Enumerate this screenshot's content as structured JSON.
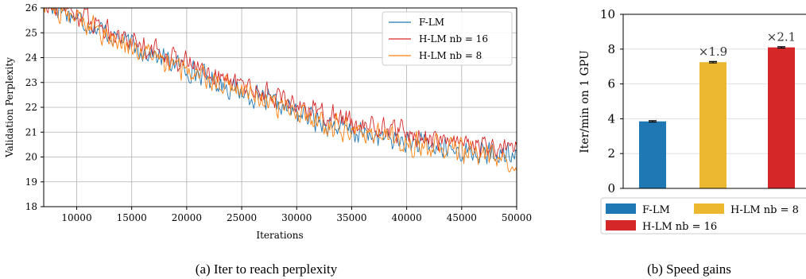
{
  "chart_data": [
    {
      "type": "line",
      "caption": "(a) Iter to reach perplexity",
      "xlabel": "Iterations",
      "ylabel": "Validation Perplexity",
      "xlim": [
        7000,
        50000
      ],
      "ylim": [
        18,
        26
      ],
      "xticks": [
        "10000",
        "15000",
        "20000",
        "25000",
        "30000",
        "35000",
        "40000",
        "45000",
        "50000"
      ],
      "yticks": [
        "18",
        "19",
        "20",
        "21",
        "22",
        "23",
        "24",
        "25",
        "26"
      ],
      "grid": true,
      "legend_position": "top-right",
      "legend": [
        "F-LM",
        "H-LM nb = 16",
        "H-LM nb = 8"
      ],
      "series": [
        {
          "name": "F-LM",
          "color": "#1f77b4",
          "trend_x": [
            7000,
            15000,
            25000,
            35000,
            45000,
            50000
          ],
          "trend_y": [
            26.3,
            24.5,
            22.6,
            21.0,
            20.2,
            20.0
          ],
          "noise": 0.55
        },
        {
          "name": "H-LM nb = 16",
          "color": "#d62728",
          "trend_x": [
            7000,
            15000,
            25000,
            35000,
            45000,
            50000
          ],
          "trend_y": [
            26.4,
            24.7,
            22.9,
            21.4,
            20.5,
            20.2
          ],
          "noise": 0.55
        },
        {
          "name": "H-LM nb = 8",
          "color": "#ff7f0e",
          "trend_x": [
            7000,
            15000,
            25000,
            35000,
            45000,
            50000
          ],
          "trend_y": [
            26.2,
            24.4,
            22.6,
            21.0,
            20.2,
            19.9
          ],
          "noise": 0.6
        }
      ]
    },
    {
      "type": "bar",
      "caption": "(b) Speed gains",
      "ylabel": "Iter/min on 1 GPU",
      "ylim": [
        0,
        10
      ],
      "yticks": [
        "0",
        "2",
        "4",
        "6",
        "8",
        "10"
      ],
      "grid": true,
      "categories": [
        "F-LM",
        "H-LM nb = 8",
        "H-LM nb = 16"
      ],
      "values": [
        3.85,
        7.25,
        8.1
      ],
      "errors": [
        0.04,
        0.04,
        0.04
      ],
      "colors": [
        "#1f77b4",
        "#ecb731",
        "#d62728"
      ],
      "annotations": [
        "",
        "×1.9",
        "×2.1"
      ],
      "legend_position": "bottom",
      "legend": [
        "F-LM",
        "H-LM nb = 8",
        "H-LM nb = 16"
      ]
    }
  ]
}
